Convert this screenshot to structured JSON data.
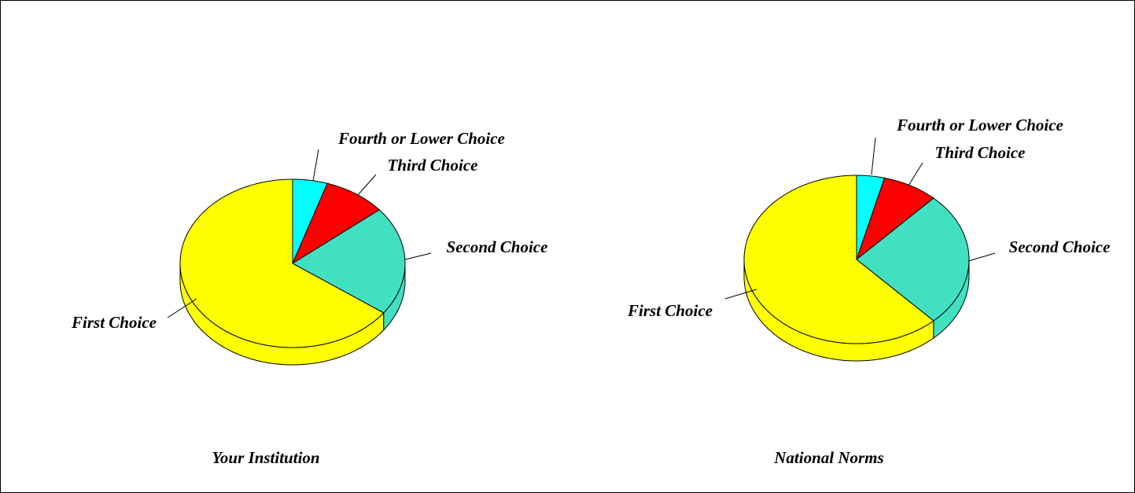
{
  "chart_data": [
    {
      "type": "pie",
      "title": "Your Institution",
      "categories": [
        "Fourth or Lower Choice",
        "Third Choice",
        "Second Choice",
        "First Choice"
      ],
      "values": [
        5,
        9,
        21,
        65
      ],
      "colors": [
        "#00ffff",
        "#ff0000",
        "#40e0c0",
        "#ffff00"
      ]
    },
    {
      "type": "pie",
      "title": "National Norms",
      "categories": [
        "Fourth or Lower Choice",
        "Third Choice",
        "Second Choice",
        "First Choice"
      ],
      "values": [
        4,
        8,
        26,
        62
      ],
      "colors": [
        "#00ffff",
        "#ff0000",
        "#40e0c0",
        "#ffff00"
      ]
    }
  ]
}
